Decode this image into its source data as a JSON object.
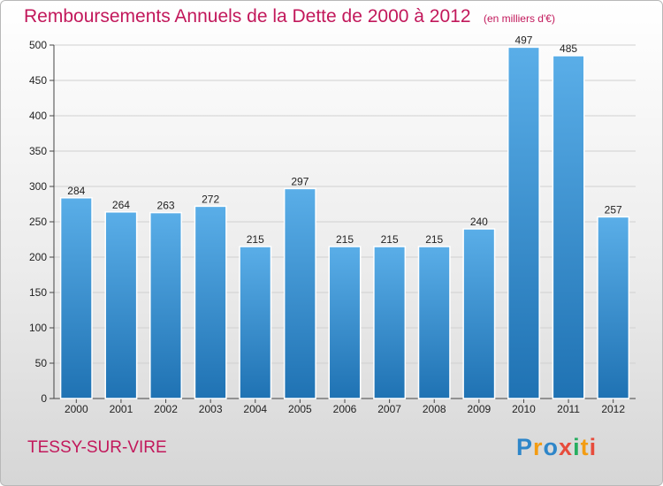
{
  "title": "Remboursements Annuels de la Dette de 2000 à 2012",
  "unit": "(en milliers d'€)",
  "commune": "TESSY-SUR-VIRE",
  "logo": {
    "text": "Proxiti",
    "letter_colors": [
      "#2e86c9",
      "#f39c12",
      "#2e86c9",
      "#e74c3c",
      "#27ae60",
      "#f39c12",
      "#e74c3c"
    ]
  },
  "colors": {
    "title": "#c2185b",
    "bar_top": "#5aaee8",
    "bar_bottom": "#1f72b3",
    "grid": "#d0d0d0"
  },
  "chart_data": {
    "type": "bar",
    "categories": [
      "2000",
      "2001",
      "2002",
      "2003",
      "2004",
      "2005",
      "2006",
      "2007",
      "2008",
      "2009",
      "2010",
      "2011",
      "2012"
    ],
    "values": [
      284,
      264,
      263,
      272,
      215,
      297,
      215,
      215,
      215,
      240,
      497,
      485,
      257
    ],
    "ylim": [
      0,
      500
    ],
    "yticks": [
      0,
      50,
      100,
      150,
      200,
      250,
      300,
      350,
      400,
      450,
      500
    ],
    "grid": true,
    "data_labels": true
  }
}
